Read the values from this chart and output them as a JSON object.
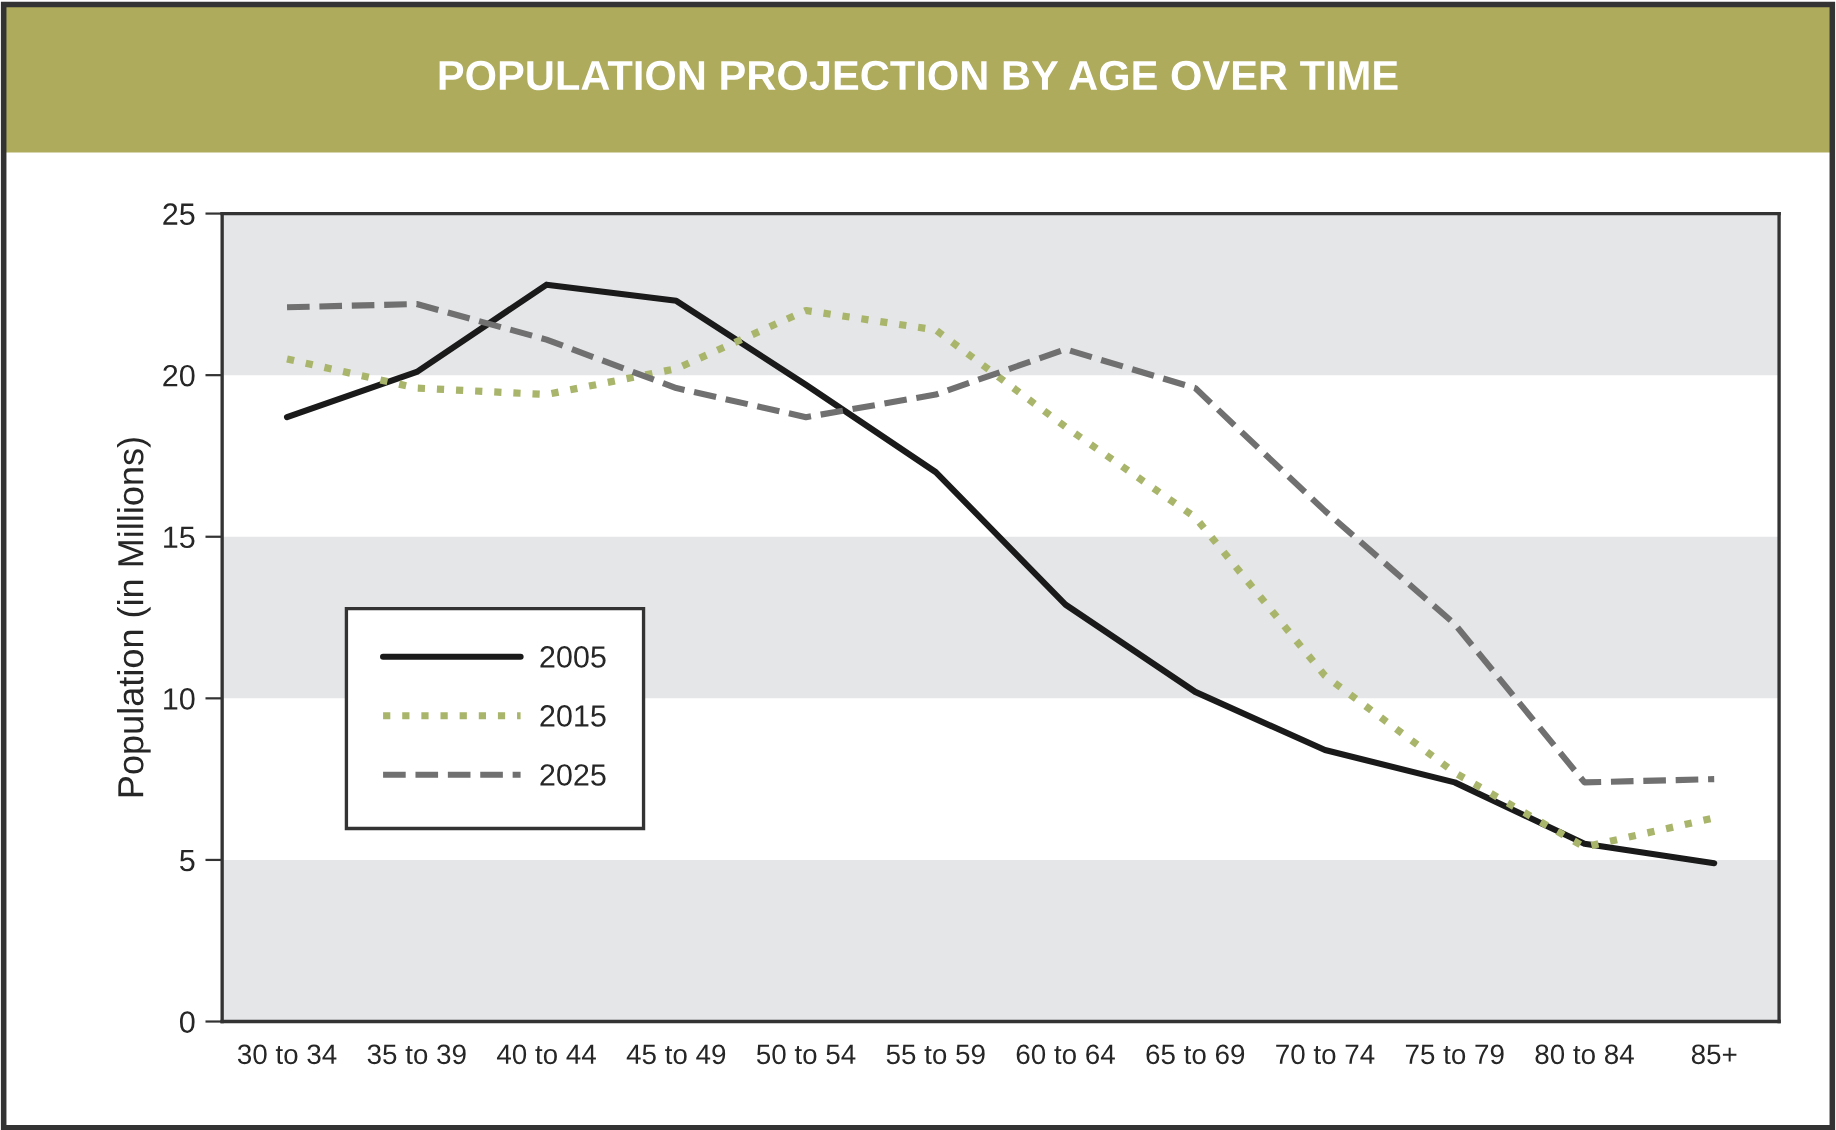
{
  "chart_data": {
    "type": "line",
    "title": "POPULATION PROJECTION BY AGE OVER TIME",
    "ylabel": "Population (in Millions)",
    "categories": [
      "30 to 34",
      "35 to 39",
      "40 to 44",
      "45 to 49",
      "50 to 54",
      "55 to 59",
      "60 to 64",
      "65 to 69",
      "70 to 74",
      "75 to 79",
      "80 to 84",
      "85+"
    ],
    "series": [
      {
        "name": "2005",
        "color": "#1a1a1a",
        "line_style": "solid",
        "values": [
          18.7,
          20.1,
          22.8,
          22.3,
          19.7,
          17.0,
          12.9,
          10.2,
          8.4,
          7.4,
          5.5,
          4.9
        ]
      },
      {
        "name": "2015",
        "color": "#a9b56a",
        "line_style": "dotted",
        "values": [
          20.5,
          19.6,
          19.4,
          20.2,
          22.0,
          21.4,
          18.4,
          15.6,
          10.7,
          7.7,
          5.4,
          6.3
        ]
      },
      {
        "name": "2025",
        "color": "#707070",
        "line_style": "dashed",
        "values": [
          22.1,
          22.2,
          21.1,
          19.6,
          18.7,
          19.4,
          20.8,
          19.6,
          15.8,
          12.3,
          7.4,
          7.5
        ]
      }
    ],
    "ylim": [
      0,
      25
    ],
    "yticks": [
      0,
      5,
      10,
      15,
      20,
      25
    ],
    "grid": false,
    "legend": "left",
    "marker": "none",
    "bands": [
      {
        "axis": "y",
        "from": 0,
        "to": 5,
        "color": "#e5e6e8"
      },
      {
        "axis": "y",
        "from": 10,
        "to": 15,
        "color": "#e5e6e8"
      },
      {
        "axis": "y",
        "from": 20,
        "to": 25,
        "color": "#e5e6e8"
      }
    ]
  }
}
